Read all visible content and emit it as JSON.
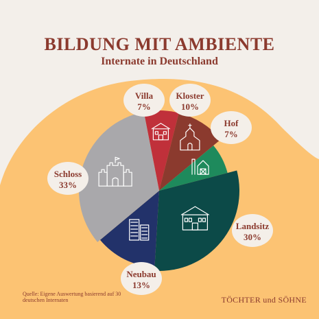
{
  "title": "BILDUNG MIT AMBIENTE",
  "subtitle": "Internate in Deutschland",
  "source": "Quelle: Eigene Auswertung basierend auf 30 deutschen Internaten",
  "brand": "TÖCHTER und SÖHNE",
  "colors": {
    "background": "#f3efea",
    "blob": "#fcc373",
    "title": "#8b3a2e",
    "bubble": "#f4efe9"
  },
  "chart_data": {
    "type": "pie",
    "unit": "%",
    "slices": [
      {
        "name": "Villa",
        "value": 7,
        "color": "#c0303a",
        "icon": "villa-icon"
      },
      {
        "name": "Kloster",
        "value": 10,
        "color": "#8b3a2e",
        "icon": "monastery-icon"
      },
      {
        "name": "Hof",
        "value": 7,
        "color": "#1e8a5c",
        "icon": "farm-icon"
      },
      {
        "name": "Landsitz",
        "value": 30,
        "color": "#0c4a48",
        "icon": "manor-icon"
      },
      {
        "name": "Neubau",
        "value": 13,
        "color": "#22326a",
        "icon": "modern-building-icon"
      },
      {
        "name": "Schloss",
        "value": 33,
        "color": "#a9a8ab",
        "icon": "castle-icon"
      }
    ]
  }
}
